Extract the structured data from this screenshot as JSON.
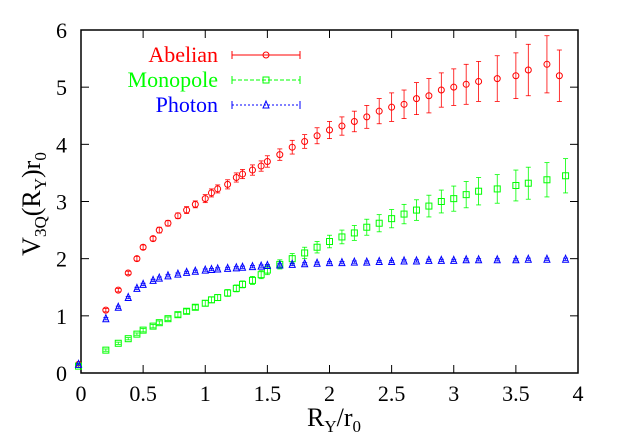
{
  "chart_data": {
    "type": "scatter",
    "xlabel": {
      "main": "R",
      "sub": "Y",
      "mid": "/r",
      "sub2": "0"
    },
    "ylabel": {
      "pre": "V",
      "sub": "3Q",
      "mid": "(R",
      "sub2": "Y",
      "post": ")r",
      "sub3": "0"
    },
    "xlim": [
      0,
      4
    ],
    "ylim": [
      0,
      6
    ],
    "xticks": [
      "0",
      "0.5",
      "1",
      "1.5",
      "2",
      "2.5",
      "3",
      "3.5",
      "4"
    ],
    "yticks": [
      "0",
      "1",
      "2",
      "3",
      "4",
      "5",
      "6"
    ],
    "grid": false,
    "legend_position": "top-left",
    "series": [
      {
        "name": "Abelian",
        "color": "#ff0000",
        "marker": "circle",
        "x": [
          -0.02,
          0.2,
          0.3,
          0.38,
          0.45,
          0.5,
          0.58,
          0.63,
          0.7,
          0.78,
          0.85,
          0.92,
          1.0,
          1.05,
          1.1,
          1.18,
          1.25,
          1.3,
          1.38,
          1.45,
          1.5,
          1.6,
          1.7,
          1.8,
          1.9,
          2.0,
          2.1,
          2.2,
          2.3,
          2.4,
          2.5,
          2.6,
          2.7,
          2.8,
          2.9,
          3.0,
          3.1,
          3.2,
          3.35,
          3.5,
          3.6,
          3.75,
          3.85
        ],
        "y": [
          0.15,
          1.1,
          1.45,
          1.75,
          2.0,
          2.2,
          2.35,
          2.5,
          2.62,
          2.75,
          2.85,
          2.95,
          3.05,
          3.15,
          3.22,
          3.3,
          3.42,
          3.48,
          3.55,
          3.62,
          3.7,
          3.82,
          3.95,
          4.05,
          4.15,
          4.25,
          4.32,
          4.4,
          4.48,
          4.58,
          4.65,
          4.7,
          4.8,
          4.85,
          4.95,
          5.0,
          5.05,
          5.1,
          5.15,
          5.2,
          5.3,
          5.4,
          5.2
        ],
        "err": [
          0.02,
          0.03,
          0.03,
          0.03,
          0.04,
          0.04,
          0.04,
          0.05,
          0.05,
          0.05,
          0.06,
          0.06,
          0.07,
          0.07,
          0.07,
          0.08,
          0.08,
          0.08,
          0.09,
          0.09,
          0.1,
          0.1,
          0.12,
          0.12,
          0.14,
          0.15,
          0.16,
          0.18,
          0.2,
          0.22,
          0.25,
          0.25,
          0.28,
          0.3,
          0.3,
          0.32,
          0.35,
          0.35,
          0.4,
          0.4,
          0.45,
          0.5,
          0.45
        ]
      },
      {
        "name": "Monopole",
        "color": "#00ff00",
        "marker": "square",
        "x": [
          -0.02,
          0.2,
          0.3,
          0.38,
          0.45,
          0.5,
          0.58,
          0.63,
          0.7,
          0.78,
          0.85,
          0.92,
          1.0,
          1.05,
          1.1,
          1.18,
          1.25,
          1.3,
          1.38,
          1.45,
          1.5,
          1.6,
          1.7,
          1.8,
          1.9,
          2.0,
          2.1,
          2.2,
          2.3,
          2.4,
          2.5,
          2.6,
          2.7,
          2.8,
          2.9,
          3.0,
          3.1,
          3.2,
          3.35,
          3.5,
          3.6,
          3.75,
          3.9
        ],
        "y": [
          0.12,
          0.4,
          0.52,
          0.6,
          0.68,
          0.75,
          0.82,
          0.88,
          0.95,
          1.02,
          1.08,
          1.15,
          1.22,
          1.28,
          1.32,
          1.4,
          1.48,
          1.55,
          1.62,
          1.72,
          1.8,
          1.9,
          2.0,
          2.1,
          2.2,
          2.3,
          2.38,
          2.45,
          2.55,
          2.62,
          2.7,
          2.78,
          2.85,
          2.92,
          3.0,
          3.05,
          3.12,
          3.18,
          3.22,
          3.28,
          3.32,
          3.38,
          3.45
        ],
        "err": [
          0.02,
          0.02,
          0.02,
          0.02,
          0.02,
          0.03,
          0.03,
          0.03,
          0.03,
          0.04,
          0.04,
          0.04,
          0.05,
          0.05,
          0.05,
          0.06,
          0.06,
          0.06,
          0.07,
          0.07,
          0.08,
          0.08,
          0.09,
          0.1,
          0.1,
          0.11,
          0.12,
          0.13,
          0.14,
          0.15,
          0.16,
          0.17,
          0.18,
          0.19,
          0.2,
          0.22,
          0.23,
          0.24,
          0.25,
          0.27,
          0.28,
          0.3,
          0.3
        ]
      },
      {
        "name": "Photon",
        "color": "#0000ff",
        "marker": "triangle",
        "x": [
          -0.02,
          0.2,
          0.3,
          0.38,
          0.45,
          0.5,
          0.58,
          0.63,
          0.7,
          0.78,
          0.85,
          0.92,
          1.0,
          1.05,
          1.1,
          1.18,
          1.25,
          1.3,
          1.38,
          1.45,
          1.5,
          1.6,
          1.7,
          1.8,
          1.9,
          2.0,
          2.1,
          2.2,
          2.3,
          2.4,
          2.5,
          2.6,
          2.7,
          2.8,
          2.9,
          3.0,
          3.1,
          3.2,
          3.35,
          3.5,
          3.6,
          3.75,
          3.9
        ],
        "y": [
          0.15,
          0.95,
          1.15,
          1.32,
          1.48,
          1.55,
          1.62,
          1.66,
          1.7,
          1.73,
          1.76,
          1.78,
          1.8,
          1.81,
          1.82,
          1.83,
          1.84,
          1.85,
          1.86,
          1.87,
          1.88,
          1.89,
          1.9,
          1.91,
          1.92,
          1.93,
          1.93,
          1.94,
          1.94,
          1.95,
          1.95,
          1.96,
          1.96,
          1.97,
          1.97,
          1.97,
          1.98,
          1.98,
          1.98,
          1.98,
          1.99,
          1.99,
          1.99
        ],
        "err": [
          0.01,
          0.02,
          0.02,
          0.02,
          0.02,
          0.02,
          0.02,
          0.02,
          0.02,
          0.02,
          0.02,
          0.02,
          0.02,
          0.02,
          0.02,
          0.02,
          0.02,
          0.02,
          0.02,
          0.02,
          0.02,
          0.02,
          0.02,
          0.02,
          0.02,
          0.02,
          0.02,
          0.02,
          0.02,
          0.02,
          0.02,
          0.02,
          0.02,
          0.02,
          0.02,
          0.02,
          0.02,
          0.02,
          0.02,
          0.02,
          0.02,
          0.02,
          0.02
        ]
      }
    ]
  }
}
